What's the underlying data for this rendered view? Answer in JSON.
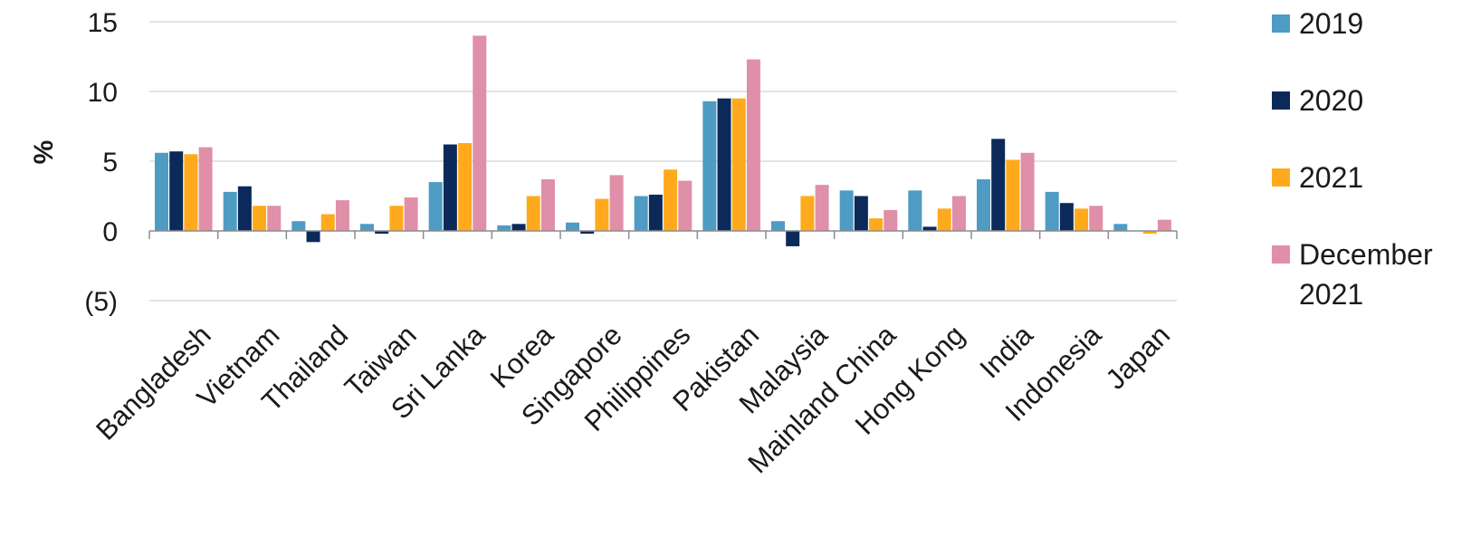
{
  "chart_data": {
    "type": "bar",
    "ylabel": "%",
    "ylim": [
      -5,
      15
    ],
    "yticks": [
      15,
      10,
      5,
      0,
      -5
    ],
    "ytick_labels": [
      "15",
      "10",
      "5",
      "0",
      "(5)"
    ],
    "grid": true,
    "legend_position": "right",
    "categories": [
      "Bangladesh",
      "Vietnam",
      "Thailand",
      "Taiwan",
      "Sri Lanka",
      "Korea",
      "Singapore",
      "Philippines",
      "Pakistan",
      "Malaysia",
      "Mainland China",
      "Hong Kong",
      "India",
      "Indonesia",
      "Japan"
    ],
    "series": [
      {
        "name": "2019",
        "color": "#4e9bc4",
        "values": [
          5.6,
          2.8,
          0.7,
          0.5,
          3.5,
          0.4,
          0.6,
          2.5,
          9.3,
          0.7,
          2.9,
          2.9,
          3.7,
          2.8,
          0.5
        ]
      },
      {
        "name": "2020",
        "color": "#0b2a5a",
        "values": [
          5.7,
          3.2,
          -0.8,
          -0.2,
          6.2,
          0.5,
          -0.2,
          2.6,
          9.5,
          -1.1,
          2.5,
          0.3,
          6.6,
          2.0,
          0.0
        ]
      },
      {
        "name": "2021",
        "color": "#ffaa1c",
        "values": [
          5.5,
          1.8,
          1.2,
          1.8,
          6.3,
          2.5,
          2.3,
          4.4,
          9.5,
          2.5,
          0.9,
          1.6,
          5.1,
          1.6,
          -0.2
        ]
      },
      {
        "name": "December 2021",
        "color": "#e08fa8",
        "values": [
          6.0,
          1.8,
          2.2,
          2.4,
          14.0,
          3.7,
          4.0,
          3.6,
          12.3,
          3.3,
          1.5,
          2.5,
          5.6,
          1.8,
          0.8
        ]
      }
    ]
  }
}
